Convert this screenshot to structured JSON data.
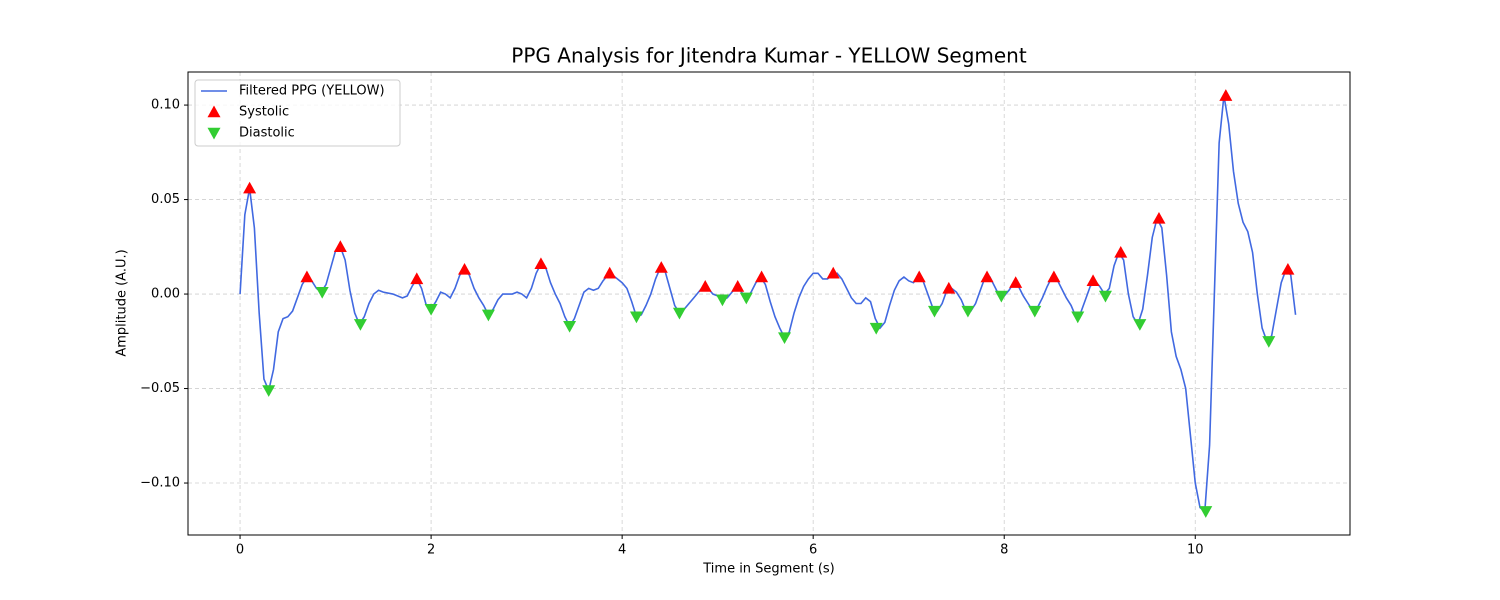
{
  "chart_data": {
    "type": "line",
    "title": "PPG Analysis for Jitendra Kumar - YELLOW Segment",
    "xlabel": "Time in Segment (s)",
    "ylabel": "Amplitude (A.U.)",
    "xlim": [
      -0.545,
      11.62
    ],
    "ylim": [
      -0.1275,
      0.1175
    ],
    "xticks": [
      0,
      2,
      4,
      6,
      8,
      10
    ],
    "yticks": [
      {
        "value": -0.1,
        "label": "−0.10"
      },
      {
        "value": -0.05,
        "label": "−0.05"
      },
      {
        "value": 0,
        "label": "0.00"
      },
      {
        "value": 0.05,
        "label": "0.05"
      },
      {
        "value": 0.1,
        "label": "0.10"
      }
    ],
    "grid": true,
    "legend": "upper left",
    "series": [
      {
        "name": "Filtered PPG (YELLOW)",
        "color": "#4169e1",
        "type": "line",
        "x": [
          0,
          0.05,
          0.1,
          0.15,
          0.2,
          0.25,
          0.3,
          0.35,
          0.4,
          0.45,
          0.5,
          0.55,
          0.6,
          0.65,
          0.7,
          0.75,
          0.8,
          0.85,
          0.9,
          0.95,
          1,
          1.05,
          1.1,
          1.15,
          1.2,
          1.25,
          1.3,
          1.35,
          1.4,
          1.45,
          1.5,
          1.6,
          1.7,
          1.75,
          1.8,
          1.85,
          1.9,
          1.95,
          2,
          2.05,
          2.1,
          2.15,
          2.2,
          2.25,
          2.3,
          2.35,
          2.4,
          2.45,
          2.5,
          2.55,
          2.6,
          2.65,
          2.7,
          2.75,
          2.85,
          2.9,
          2.95,
          3,
          3.05,
          3.1,
          3.15,
          3.2,
          3.25,
          3.3,
          3.35,
          3.4,
          3.45,
          3.5,
          3.55,
          3.6,
          3.65,
          3.7,
          3.75,
          3.8,
          3.85,
          3.9,
          3.95,
          4,
          4.05,
          4.1,
          4.15,
          4.2,
          4.25,
          4.3,
          4.35,
          4.4,
          4.45,
          4.5,
          4.55,
          4.6,
          4.65,
          4.7,
          4.75,
          4.8,
          4.85,
          4.9,
          4.95,
          5,
          5.05,
          5.1,
          5.15,
          5.2,
          5.25,
          5.3,
          5.35,
          5.4,
          5.45,
          5.5,
          5.55,
          5.6,
          5.65,
          5.7,
          5.75,
          5.8,
          5.85,
          5.9,
          5.95,
          6,
          6.05,
          6.1,
          6.15,
          6.2,
          6.25,
          6.3,
          6.35,
          6.4,
          6.45,
          6.5,
          6.55,
          6.6,
          6.65,
          6.7,
          6.75,
          6.8,
          6.85,
          6.9,
          6.95,
          7,
          7.05,
          7.1,
          7.15,
          7.2,
          7.25,
          7.3,
          7.35,
          7.4,
          7.45,
          7.5,
          7.55,
          7.6,
          7.65,
          7.7,
          7.75,
          7.8,
          7.85,
          7.9,
          7.95,
          8,
          8.05,
          8.1,
          8.15,
          8.2,
          8.25,
          8.3,
          8.35,
          8.4,
          8.45,
          8.5,
          8.55,
          8.6,
          8.65,
          8.7,
          8.75,
          8.8,
          8.85,
          8.9,
          8.95,
          9,
          9.05,
          9.1,
          9.15,
          9.2,
          9.25,
          9.3,
          9.35,
          9.4,
          9.45,
          9.5,
          9.55,
          9.6,
          9.65,
          9.7,
          9.75,
          9.8,
          9.85,
          9.9,
          9.95,
          10,
          10.05,
          10.1,
          10.15,
          10.2,
          10.25,
          10.3,
          10.35,
          10.4,
          10.45,
          10.5,
          10.55,
          10.6,
          10.65,
          10.7,
          10.75,
          10.8,
          10.85,
          10.9,
          10.95,
          11,
          11.05
        ],
        "values": [
          0,
          0.042,
          0.056,
          0.035,
          -0.01,
          -0.045,
          -0.051,
          -0.04,
          -0.02,
          -0.013,
          -0.012,
          -0.009,
          -0.002,
          0.005,
          0.009,
          0.007,
          0.003,
          0.001,
          0.005,
          0.014,
          0.023,
          0.025,
          0.018,
          0.002,
          -0.01,
          -0.016,
          -0.012,
          -0.005,
          0,
          0.002,
          0.001,
          0,
          -0.002,
          -0.001,
          0.004,
          0.008,
          0.003,
          -0.006,
          -0.008,
          -0.004,
          0.001,
          0,
          -0.002,
          0.003,
          0.01,
          0.013,
          0.01,
          0.003,
          -0.002,
          -0.006,
          -0.011,
          -0.008,
          -0.003,
          0,
          0,
          0.001,
          0,
          -0.002,
          0.003,
          0.011,
          0.016,
          0.014,
          0.006,
          0,
          -0.005,
          -0.012,
          -0.017,
          -0.013,
          -0.006,
          0.001,
          0.003,
          0.002,
          0.003,
          0.007,
          0.01,
          0.01,
          0.008,
          0.006,
          0.003,
          -0.004,
          -0.012,
          -0.011,
          -0.006,
          0,
          0.008,
          0.014,
          0.012,
          0.003,
          -0.006,
          -0.01,
          -0.008,
          -0.005,
          -0.002,
          0.001,
          0.004,
          0.003,
          0,
          -0.001,
          -0.003,
          -0.002,
          0.001,
          0.004,
          0.001,
          -0.002,
          0.001,
          0.006,
          0.009,
          0.005,
          -0.004,
          -0.012,
          -0.018,
          -0.023,
          -0.02,
          -0.01,
          -0.002,
          0.004,
          0.008,
          0.011,
          0.011,
          0.008,
          0.008,
          0.01,
          0.011,
          0.008,
          0.003,
          -0.002,
          -0.005,
          -0.005,
          -0.002,
          -0.004,
          -0.013,
          -0.018,
          -0.015,
          -0.006,
          0.002,
          0.007,
          0.009,
          0.007,
          0.006,
          0.009,
          0.007,
          0,
          -0.007,
          -0.009,
          -0.005,
          0.002,
          0.003,
          0.001,
          -0.003,
          -0.009,
          -0.009,
          -0.005,
          0.002,
          0.009,
          0.009,
          0.004,
          -0.001,
          -0.001,
          0.002,
          0.006,
          0.004,
          -0.001,
          -0.005,
          -0.009,
          -0.007,
          -0.002,
          0.004,
          0.009,
          0.008,
          0.003,
          -0.002,
          -0.006,
          -0.012,
          -0.01,
          -0.003,
          0.004,
          0.007,
          0.004,
          0,
          0.003,
          0.015,
          0.022,
          0.018,
          0,
          -0.012,
          -0.016,
          -0.008,
          0.01,
          0.03,
          0.04,
          0.035,
          0.01,
          -0.02,
          -0.033,
          -0.04,
          -0.05,
          -0.075,
          -0.1,
          -0.113,
          -0.115,
          -0.08,
          0,
          0.08,
          0.105,
          0.09,
          0.065,
          0.048,
          0.038,
          0.033,
          0.022,
          0,
          -0.018,
          -0.025,
          -0.022,
          -0.008,
          0.006,
          0.013,
          0.01,
          -0.011
        ]
      },
      {
        "name": "Systolic",
        "color": "#ff0000",
        "type": "scatter",
        "marker": "^",
        "x": [
          0.1,
          0.7,
          1.05,
          1.85,
          2.35,
          3.15,
          3.87,
          4.41,
          4.87,
          5.21,
          5.46,
          6.21,
          7.11,
          7.42,
          7.82,
          8.12,
          8.52,
          8.93,
          9.22,
          9.62,
          10.32,
          10.97
        ],
        "values": [
          0.056,
          0.009,
          0.025,
          0.008,
          0.013,
          0.016,
          0.011,
          0.014,
          0.004,
          0.004,
          0.009,
          0.011,
          0.009,
          0.003,
          0.009,
          0.006,
          0.009,
          0.007,
          0.022,
          0.04,
          0.105,
          0.013
        ]
      },
      {
        "name": "Diastolic",
        "color": "#32cd32",
        "type": "scatter",
        "marker": "v",
        "x": [
          0.3,
          0.86,
          1.26,
          2,
          2.6,
          3.45,
          4.15,
          4.6,
          5.05,
          5.3,
          5.7,
          6.66,
          7.27,
          7.62,
          7.97,
          8.32,
          8.77,
          9.06,
          9.42,
          10.11,
          10.77
        ],
        "values": [
          -0.051,
          0.001,
          -0.016,
          -0.008,
          -0.011,
          -0.017,
          -0.012,
          -0.01,
          -0.003,
          -0.002,
          -0.023,
          -0.018,
          -0.009,
          -0.009,
          -0.001,
          -0.009,
          -0.012,
          -0.001,
          -0.016,
          -0.115,
          -0.025
        ]
      }
    ]
  }
}
